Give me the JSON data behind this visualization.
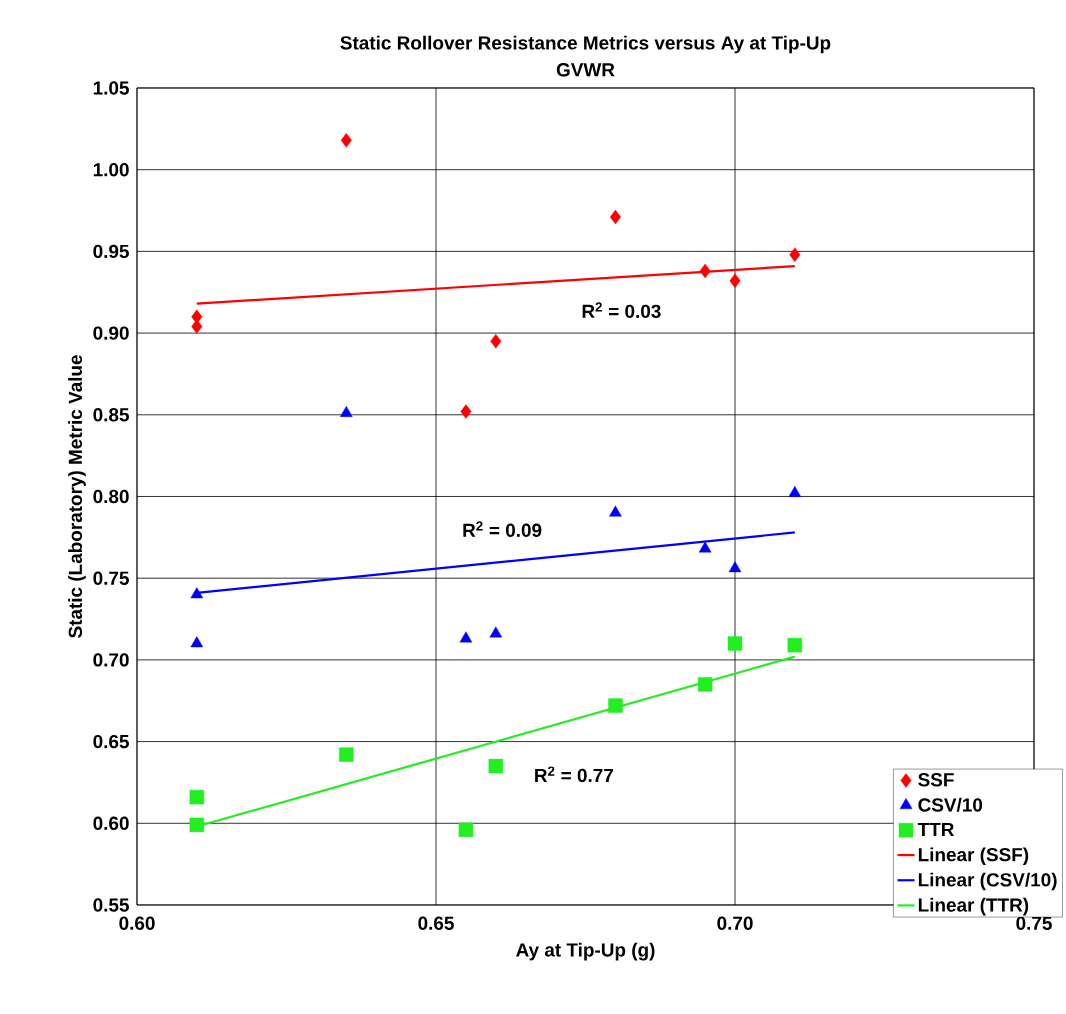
{
  "chart_data": {
    "type": "scatter",
    "title": "Static Rollover Resistance Metrics versus Ay at Tip-Up",
    "subtitle": "GVWR",
    "xlabel": "Ay at Tip-Up (g)",
    "ylabel": "Static (Laboratory) Metric Value",
    "xlim": [
      0.6,
      0.75
    ],
    "ylim": [
      0.55,
      1.05
    ],
    "xticks": [
      {
        "value": 0.6,
        "label": "0.60"
      },
      {
        "value": 0.65,
        "label": "0.65"
      },
      {
        "value": 0.7,
        "label": "0.70"
      },
      {
        "value": 0.75,
        "label": "0.75"
      }
    ],
    "yticks": [
      {
        "value": 0.55,
        "label": "0.55"
      },
      {
        "value": 0.6,
        "label": "0.60"
      },
      {
        "value": 0.65,
        "label": "0.65"
      },
      {
        "value": 0.7,
        "label": "0.70"
      },
      {
        "value": 0.75,
        "label": "0.75"
      },
      {
        "value": 0.8,
        "label": "0.80"
      },
      {
        "value": 0.85,
        "label": "0.85"
      },
      {
        "value": 0.9,
        "label": "0.90"
      },
      {
        "value": 0.95,
        "label": "0.95"
      },
      {
        "value": 1.0,
        "label": "1.00"
      },
      {
        "value": 1.05,
        "label": "1.05"
      }
    ],
    "grid": true,
    "legend": "bottom right",
    "series": [
      {
        "name": "SSF",
        "marker": "diamond",
        "color": "#ff0000",
        "x": [
          0.61,
          0.61,
          0.635,
          0.655,
          0.66,
          0.68,
          0.695,
          0.7,
          0.71
        ],
        "values": [
          0.91,
          0.904,
          1.018,
          0.852,
          0.895,
          0.971,
          0.938,
          0.932,
          0.948
        ]
      },
      {
        "name": "CSV/10",
        "marker": "triangle",
        "color": "#0000ff",
        "x": [
          0.61,
          0.61,
          0.635,
          0.655,
          0.66,
          0.68,
          0.695,
          0.7,
          0.71
        ],
        "values": [
          0.74,
          0.71,
          0.851,
          0.713,
          0.716,
          0.79,
          0.768,
          0.756,
          0.802
        ]
      },
      {
        "name": "TTR",
        "marker": "square",
        "color": "#22ee22",
        "x": [
          0.61,
          0.61,
          0.635,
          0.655,
          0.66,
          0.68,
          0.695,
          0.7,
          0.71
        ],
        "values": [
          0.616,
          0.599,
          0.642,
          0.596,
          0.635,
          0.672,
          0.685,
          0.71,
          0.709
        ]
      },
      {
        "name": "Linear (SSF)",
        "type": "line",
        "marker": "none",
        "color": "#ff0000",
        "x": [
          0.61,
          0.71
        ],
        "values": [
          0.918,
          0.941
        ]
      },
      {
        "name": "Linear (CSV/10)",
        "type": "line",
        "marker": "none",
        "color": "#0000ff",
        "x": [
          0.61,
          0.71
        ],
        "values": [
          0.741,
          0.778
        ]
      },
      {
        "name": "Linear (TTR)",
        "type": "line",
        "marker": "none",
        "color": "#22ee22",
        "x": [
          0.61,
          0.71
        ],
        "values": [
          0.598,
          0.702
        ]
      }
    ],
    "annotations": [
      "R$^{2}$ = 0.03",
      "R$^{2}$ = 0.09",
      "R$^{2}$ = 0.77"
    ]
  }
}
